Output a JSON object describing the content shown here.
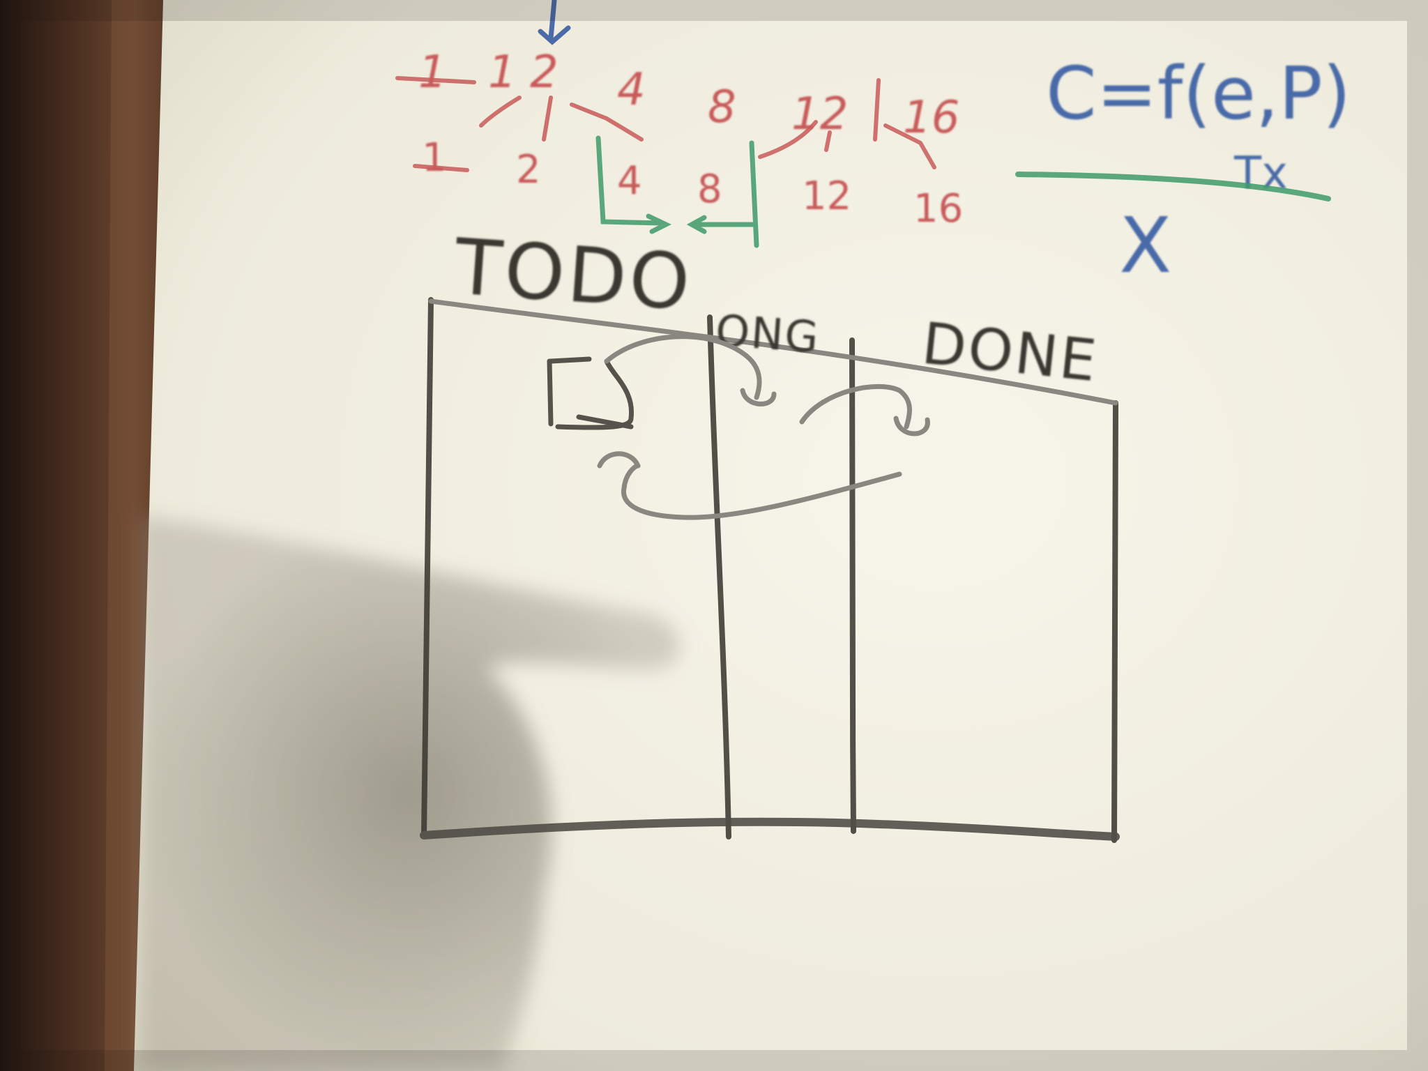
{
  "whiteboard": {
    "sequence_top": [
      "1",
      "1",
      "2",
      "4",
      "8",
      "12",
      "16"
    ],
    "sequence_bottom": [
      "1",
      "2",
      "4",
      "8",
      "12",
      "16"
    ],
    "formula": {
      "numerator": "C=f(e,P)",
      "subscript": "Tx",
      "denominator": "X"
    },
    "board": {
      "columns": [
        {
          "label": "TODO"
        },
        {
          "label": "ONG"
        },
        {
          "label": "DONE"
        }
      ]
    }
  },
  "colors": {
    "marker_red": "#c85a5a",
    "marker_green": "#3f9a6a",
    "marker_blue": "#4a6aa8",
    "marker_black": "#3b3832",
    "marker_grey": "#8a8680",
    "board_surface": "#f1efe2",
    "frame_wood": "#5a3a26"
  }
}
